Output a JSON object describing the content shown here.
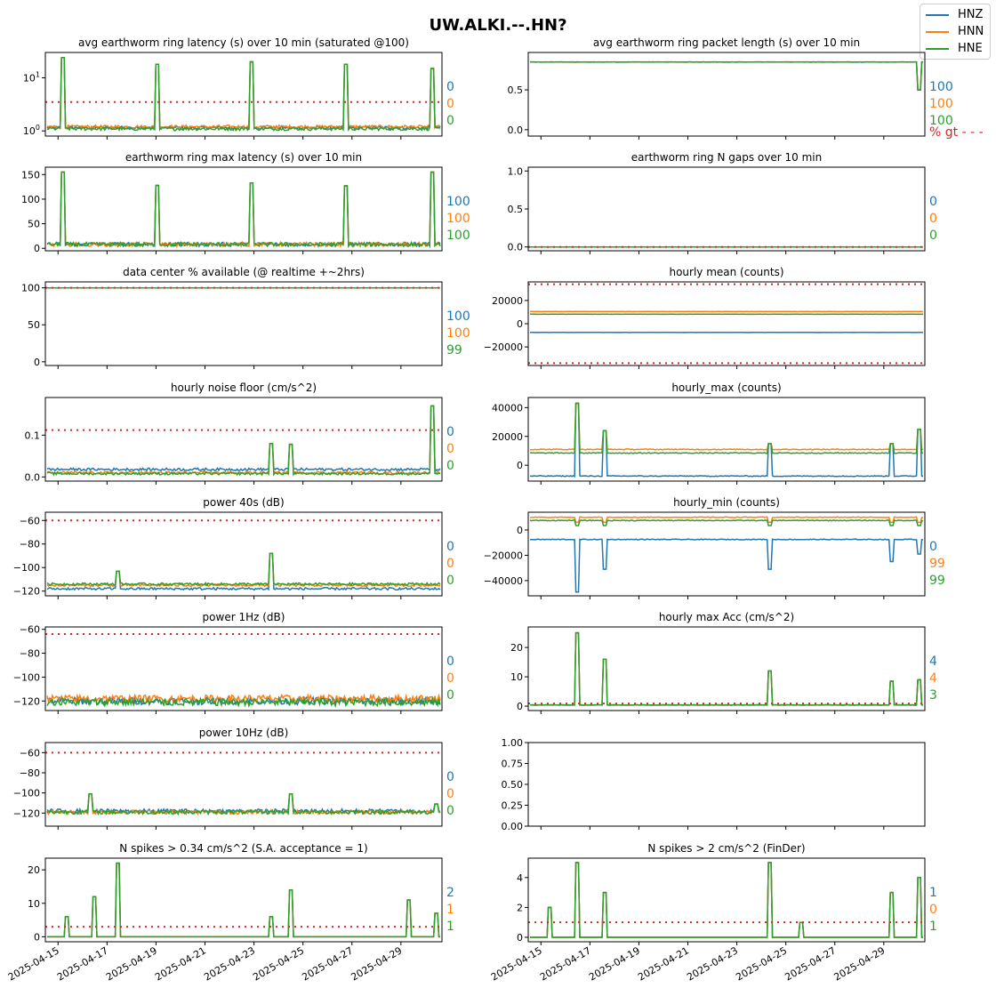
{
  "figure": {
    "title": "UW.ALKI.--.HN?",
    "legend": [
      {
        "name": "HNZ",
        "color": "#1f77b4"
      },
      {
        "name": "HNN",
        "color": "#ff7f0e"
      },
      {
        "name": "HNE",
        "color": "#2ca02c"
      }
    ],
    "threshold_color": "#d62728",
    "gt_label": "% gt - - -"
  },
  "chart_data": [
    {
      "id": "p0",
      "type": "line",
      "title": "avg earthworm ring latency (s)   over 10 min (saturated @100)",
      "scale": "log",
      "ylim": [
        0.8,
        30
      ],
      "yticks": [
        1,
        10
      ],
      "yticklabels": [
        "10^0",
        "10^1"
      ],
      "baseline": [
        1.15,
        1.2,
        1.1
      ],
      "noise": 0.08,
      "spikes": [
        [
          0.04,
          24
        ],
        [
          0.28,
          18
        ],
        [
          0.52,
          20
        ],
        [
          0.76,
          18
        ],
        [
          0.98,
          15
        ]
      ],
      "threshold": 3.5,
      "pct": [
        "0",
        "0",
        "0"
      ]
    },
    {
      "id": "p1",
      "type": "line",
      "title": "avg earthworm ring packet length (s)   over 10 min",
      "ylim": [
        -0.08,
        0.97
      ],
      "yticks": [
        0,
        0.5
      ],
      "yticklabels": [
        "0.0",
        "0.5"
      ],
      "baseline": [
        0.85,
        0.85,
        0.85
      ],
      "noise": 0.002,
      "spikes": [],
      "dips": [
        [
          0.99,
          0.5
        ]
      ],
      "pct": [
        "100",
        "100",
        "100"
      ],
      "gt": true
    },
    {
      "id": "p2",
      "type": "line",
      "title": "earthworm ring max latency (s)   over 10 min",
      "ylim": [
        -5,
        165
      ],
      "yticks": [
        0,
        50,
        100,
        150
      ],
      "yticklabels": [
        "0",
        "50",
        "100",
        "150"
      ],
      "baseline": [
        8,
        8,
        8
      ],
      "noise": 4,
      "spikes": [
        [
          0.04,
          155
        ],
        [
          0.28,
          128
        ],
        [
          0.52,
          133
        ],
        [
          0.76,
          127
        ],
        [
          0.98,
          155
        ]
      ],
      "pct": [
        "100",
        "100",
        "100"
      ]
    },
    {
      "id": "p3",
      "type": "line",
      "title": "earthworm ring N gaps   over 10 min",
      "ylim": [
        -0.05,
        1.05
      ],
      "yticks": [
        0,
        0.5,
        1
      ],
      "yticklabels": [
        "0.0",
        "0.5",
        "1.0"
      ],
      "baseline": [
        0,
        0,
        0
      ],
      "noise": 0,
      "spikes": [],
      "threshold": 0,
      "pct": [
        "0",
        "0",
        "0"
      ]
    },
    {
      "id": "p4",
      "type": "line",
      "title": "data center % available (@ realtime +~2hrs)",
      "ylim": [
        -5,
        108
      ],
      "yticks": [
        0,
        50,
        100
      ],
      "yticklabels": [
        "0",
        "50",
        "100"
      ],
      "baseline": [
        100,
        100,
        100
      ],
      "noise": 0,
      "spikes": [],
      "threshold": 100,
      "pct": [
        "100",
        "100",
        "99"
      ]
    },
    {
      "id": "p5",
      "type": "line",
      "title": "hourly mean (counts)",
      "ylim": [
        -36000,
        36000
      ],
      "yticks": [
        -20000,
        0,
        20000
      ],
      "yticklabels": [
        "−20000",
        "0",
        "20000"
      ],
      "baseline": [
        -7500,
        10500,
        8200
      ],
      "noise": 100,
      "spikes": [],
      "threshold": [
        34000,
        -34000
      ],
      "pct": []
    },
    {
      "id": "p6",
      "type": "line",
      "title": "hourly noise floor (cm/s^2)",
      "ylim": [
        -0.01,
        0.19
      ],
      "yticks": [
        0,
        0.1
      ],
      "yticklabels": [
        "0.0",
        "0.1"
      ],
      "baseline": [
        0.018,
        0.01,
        0.008
      ],
      "noise": 0.003,
      "spikes": [
        [
          0.57,
          0.08
        ],
        [
          0.62,
          0.078
        ],
        [
          0.98,
          0.17
        ]
      ],
      "threshold": 0.112,
      "pct": [
        "0",
        "0",
        "0"
      ]
    },
    {
      "id": "p7",
      "type": "line",
      "title": "hourly_max (counts)",
      "ylim": [
        -11000,
        47000
      ],
      "yticks": [
        0,
        20000,
        40000
      ],
      "yticklabels": [
        "0",
        "20000",
        "40000"
      ],
      "baseline": [
        -7500,
        11000,
        8500
      ],
      "noise": 300,
      "spikes": [
        [
          0.12,
          43000
        ],
        [
          0.19,
          24000
        ],
        [
          0.61,
          15000
        ],
        [
          0.92,
          15000
        ],
        [
          0.99,
          25000
        ]
      ],
      "pct": []
    },
    {
      "id": "p8",
      "type": "line",
      "title": "power 40s (dB)",
      "ylim": [
        -124,
        -53
      ],
      "yticks": [
        -120,
        -100,
        -80,
        -60
      ],
      "yticklabels": [
        "−120",
        "−100",
        "−80",
        "−60"
      ],
      "baseline": [
        -118,
        -115,
        -114
      ],
      "noise": 1,
      "spikes": [
        [
          0.57,
          -88
        ],
        [
          0.18,
          -103
        ]
      ],
      "threshold": -60,
      "pct": [
        "0",
        "0",
        "0"
      ]
    },
    {
      "id": "p9",
      "type": "line",
      "title": "hourly_min (counts)",
      "ylim": [
        -52000,
        14000
      ],
      "yticks": [
        -40000,
        -20000,
        0
      ],
      "yticklabels": [
        "−40000",
        "−20000",
        "0"
      ],
      "baseline": [
        -7500,
        10000,
        7500
      ],
      "noise": 300,
      "dips": [
        [
          0.12,
          -49000
        ],
        [
          0.19,
          -31000
        ],
        [
          0.61,
          -31000
        ],
        [
          0.92,
          -25000
        ],
        [
          0.99,
          -19000
        ]
      ],
      "pct": [
        "0",
        "99",
        "99"
      ]
    },
    {
      "id": "p10",
      "type": "line",
      "title": "power 1Hz (dB)",
      "ylim": [
        -128,
        -58
      ],
      "yticks": [
        -120,
        -100,
        -80,
        -60
      ],
      "yticklabels": [
        "−120",
        "−100",
        "−80",
        "−60"
      ],
      "baseline": [
        -120,
        -118,
        -121
      ],
      "noise": 3,
      "spikes": [],
      "threshold": -64,
      "pct": [
        "0",
        "0",
        "0"
      ]
    },
    {
      "id": "p11",
      "type": "line",
      "title": "hourly max Acc (cm/s^2)",
      "ylim": [
        -1.5,
        27
      ],
      "yticks": [
        0,
        10,
        20
      ],
      "yticklabels": [
        "0",
        "10",
        "20"
      ],
      "baseline": [
        0.4,
        0.4,
        0.4
      ],
      "noise": 0.1,
      "spikes": [
        [
          0.12,
          25
        ],
        [
          0.19,
          16
        ],
        [
          0.61,
          12
        ],
        [
          0.92,
          8.5
        ],
        [
          0.99,
          9
        ]
      ],
      "threshold": 0.9,
      "pct": [
        "4",
        "4",
        "3"
      ]
    },
    {
      "id": "p12",
      "type": "line",
      "title": "power 10Hz (dB)",
      "ylim": [
        -133,
        -50
      ],
      "yticks": [
        -120,
        -100,
        -80,
        -60
      ],
      "yticklabels": [
        "−120",
        "−100",
        "−80",
        "−60"
      ],
      "baseline": [
        -118,
        -119,
        -119
      ],
      "noise": 2,
      "spikes": [
        [
          0.11,
          -101
        ],
        [
          0.62,
          -101
        ],
        [
          0.99,
          -111
        ]
      ],
      "threshold": -60,
      "pct": [
        "0",
        "0",
        "0"
      ]
    },
    {
      "id": "p13",
      "type": "empty",
      "title": "",
      "ylim": [
        0,
        1
      ],
      "yticks": [
        0,
        0.25,
        0.5,
        0.75,
        1
      ],
      "yticklabels": [
        "0.00",
        "0.25",
        "0.50",
        "0.75",
        "1.00"
      ],
      "pct": []
    },
    {
      "id": "p14",
      "type": "line",
      "title": "N spikes > 0.34 cm/s^2 (S.A. acceptance = 1)",
      "ylim": [
        -1.5,
        23.5
      ],
      "yticks": [
        0,
        10,
        20
      ],
      "yticklabels": [
        "0",
        "10",
        "20"
      ],
      "baseline": [
        0,
        0,
        0
      ],
      "noise": 0,
      "spikes": [
        [
          0.05,
          6
        ],
        [
          0.12,
          12
        ],
        [
          0.18,
          22
        ],
        [
          0.57,
          6
        ],
        [
          0.62,
          14
        ],
        [
          0.92,
          11
        ],
        [
          0.99,
          7
        ]
      ],
      "threshold": 3,
      "pct": [
        "2",
        "1",
        "1"
      ]
    },
    {
      "id": "p15",
      "type": "line",
      "title": "N spikes > 2 cm/s^2 (FinDer)",
      "ylim": [
        -0.3,
        5.3
      ],
      "yticks": [
        0,
        2,
        4
      ],
      "yticklabels": [
        "0",
        "2",
        "4"
      ],
      "baseline": [
        0,
        0,
        0
      ],
      "noise": 0,
      "spikes": [
        [
          0.05,
          2
        ],
        [
          0.12,
          5
        ],
        [
          0.19,
          3
        ],
        [
          0.61,
          5
        ],
        [
          0.69,
          1
        ],
        [
          0.92,
          3
        ],
        [
          0.99,
          4
        ]
      ],
      "threshold": 1,
      "pct": [
        "1",
        "0",
        "1"
      ]
    }
  ],
  "xaxis": {
    "ticklabels": [
      "2025-04-15",
      "2025-04-17",
      "2025-04-19",
      "2025-04-21",
      "2025-04-23",
      "2025-04-25",
      "2025-04-27",
      "2025-04-29"
    ]
  }
}
